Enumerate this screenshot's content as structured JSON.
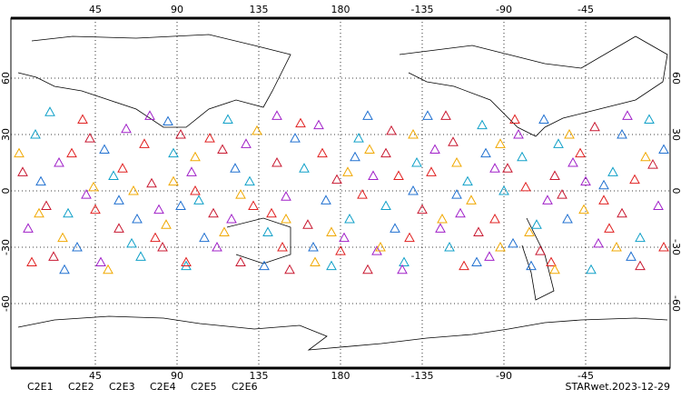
{
  "map": {
    "xlim": [
      0,
      360
    ],
    "ylim": [
      -90,
      90
    ],
    "xticks": [
      45,
      90,
      135,
      180,
      {
        "value": 225,
        "label": "-135"
      },
      {
        "value": 270,
        "label": "-90"
      },
      {
        "value": 315,
        "label": "-45"
      }
    ],
    "yticks": [
      60,
      30,
      0,
      -30,
      -60
    ],
    "grid": true,
    "series": [
      {
        "name": "C2E1",
        "color": "#10a0c8",
        "points": [
          [
            12,
            30
          ],
          [
            30,
            -12
          ],
          [
            55,
            8
          ],
          [
            70,
            -35
          ],
          [
            88,
            20
          ],
          [
            102,
            -5
          ],
          [
            118,
            38
          ],
          [
            140,
            -22
          ],
          [
            160,
            12
          ],
          [
            175,
            -40
          ],
          [
            190,
            28
          ],
          [
            205,
            -8
          ],
          [
            222,
            15
          ],
          [
            240,
            -30
          ],
          [
            258,
            35
          ],
          [
            270,
            0
          ],
          [
            288,
            -18
          ],
          [
            300,
            25
          ],
          [
            318,
            -42
          ],
          [
            330,
            10
          ],
          [
            345,
            -25
          ],
          [
            20,
            42
          ],
          [
            65,
            -28
          ],
          [
            130,
            5
          ],
          [
            215,
            -38
          ],
          [
            280,
            18
          ],
          [
            350,
            38
          ],
          [
            95,
            -40
          ],
          [
            185,
            -15
          ],
          [
            250,
            5
          ]
        ]
      },
      {
        "name": "C2E2",
        "color": "#a020c8",
        "points": [
          [
            8,
            -20
          ],
          [
            25,
            15
          ],
          [
            48,
            -38
          ],
          [
            62,
            33
          ],
          [
            80,
            -10
          ],
          [
            98,
            10
          ],
          [
            112,
            -30
          ],
          [
            128,
            25
          ],
          [
            150,
            -3
          ],
          [
            168,
            35
          ],
          [
            182,
            -25
          ],
          [
            198,
            8
          ],
          [
            214,
            -42
          ],
          [
            232,
            22
          ],
          [
            246,
            -12
          ],
          [
            262,
            -35
          ],
          [
            278,
            30
          ],
          [
            294,
            -5
          ],
          [
            308,
            15
          ],
          [
            322,
            -28
          ],
          [
            338,
            40
          ],
          [
            355,
            -8
          ],
          [
            40,
            -2
          ],
          [
            145,
            40
          ],
          [
            200,
            -32
          ],
          [
            265,
            12
          ],
          [
            315,
            5
          ],
          [
            75,
            40
          ],
          [
            120,
            -15
          ],
          [
            235,
            -20
          ]
        ]
      },
      {
        "name": "C2E3",
        "color": "#2070d0",
        "points": [
          [
            15,
            5
          ],
          [
            35,
            -30
          ],
          [
            50,
            22
          ],
          [
            68,
            -15
          ],
          [
            85,
            37
          ],
          [
            105,
            -25
          ],
          [
            122,
            12
          ],
          [
            138,
            -40
          ],
          [
            155,
            28
          ],
          [
            172,
            -5
          ],
          [
            188,
            18
          ],
          [
            210,
            -20
          ],
          [
            228,
            40
          ],
          [
            244,
            -2
          ],
          [
            260,
            20
          ],
          [
            275,
            -28
          ],
          [
            292,
            38
          ],
          [
            305,
            -15
          ],
          [
            325,
            3
          ],
          [
            340,
            -35
          ],
          [
            358,
            22
          ],
          [
            28,
            -42
          ],
          [
            92,
            -8
          ],
          [
            165,
            -30
          ],
          [
            220,
            0
          ],
          [
            285,
            -40
          ],
          [
            335,
            30
          ],
          [
            58,
            -5
          ],
          [
            195,
            40
          ],
          [
            255,
            -38
          ]
        ]
      },
      {
        "name": "C2E4",
        "color": "#c81830",
        "points": [
          [
            5,
            10
          ],
          [
            22,
            -35
          ],
          [
            42,
            28
          ],
          [
            58,
            -20
          ],
          [
            76,
            4
          ],
          [
            92,
            30
          ],
          [
            110,
            -12
          ],
          [
            125,
            -38
          ],
          [
            145,
            15
          ],
          [
            162,
            -18
          ],
          [
            178,
            6
          ],
          [
            195,
            -42
          ],
          [
            208,
            32
          ],
          [
            225,
            -10
          ],
          [
            242,
            26
          ],
          [
            256,
            -22
          ],
          [
            272,
            12
          ],
          [
            290,
            -32
          ],
          [
            302,
            -2
          ],
          [
            320,
            34
          ],
          [
            335,
            -12
          ],
          [
            352,
            14
          ],
          [
            18,
            -8
          ],
          [
            82,
            -30
          ],
          [
            152,
            -42
          ],
          [
            238,
            40
          ],
          [
            298,
            8
          ],
          [
            115,
            22
          ],
          [
            205,
            20
          ],
          [
            345,
            -40
          ]
        ]
      },
      {
        "name": "C2E5",
        "color": "#e02020",
        "points": [
          [
            10,
            -38
          ],
          [
            32,
            20
          ],
          [
            45,
            -10
          ],
          [
            60,
            12
          ],
          [
            78,
            -25
          ],
          [
            95,
            -38
          ],
          [
            108,
            28
          ],
          [
            132,
            -8
          ],
          [
            148,
            -30
          ],
          [
            158,
            36
          ],
          [
            180,
            -32
          ],
          [
            192,
            -2
          ],
          [
            218,
            -25
          ],
          [
            230,
            10
          ],
          [
            248,
            -40
          ],
          [
            265,
            -15
          ],
          [
            282,
            2
          ],
          [
            296,
            -38
          ],
          [
            312,
            20
          ],
          [
            328,
            -20
          ],
          [
            342,
            6
          ],
          [
            358,
            -30
          ],
          [
            38,
            38
          ],
          [
            100,
            0
          ],
          [
            170,
            20
          ],
          [
            212,
            8
          ],
          [
            276,
            38
          ],
          [
            325,
            -5
          ],
          [
            72,
            25
          ],
          [
            142,
            -12
          ]
        ]
      },
      {
        "name": "C2E6",
        "color": "#f0a800",
        "points": [
          [
            3,
            20
          ],
          [
            27,
            -25
          ],
          [
            52,
            -42
          ],
          [
            66,
            0
          ],
          [
            84,
            -18
          ],
          [
            100,
            18
          ],
          [
            116,
            -22
          ],
          [
            134,
            32
          ],
          [
            150,
            -15
          ],
          [
            166,
            -38
          ],
          [
            184,
            10
          ],
          [
            202,
            -30
          ],
          [
            220,
            30
          ],
          [
            236,
            -15
          ],
          [
            252,
            -5
          ],
          [
            268,
            25
          ],
          [
            284,
            -22
          ],
          [
            298,
            -42
          ],
          [
            314,
            -10
          ],
          [
            332,
            -30
          ],
          [
            348,
            18
          ],
          [
            14,
            -12
          ],
          [
            88,
            5
          ],
          [
            125,
            -2
          ],
          [
            196,
            22
          ],
          [
            244,
            15
          ],
          [
            306,
            30
          ],
          [
            44,
            2
          ],
          [
            175,
            -22
          ],
          [
            268,
            -30
          ]
        ]
      }
    ],
    "label": "STARwet.2023-12-29"
  }
}
